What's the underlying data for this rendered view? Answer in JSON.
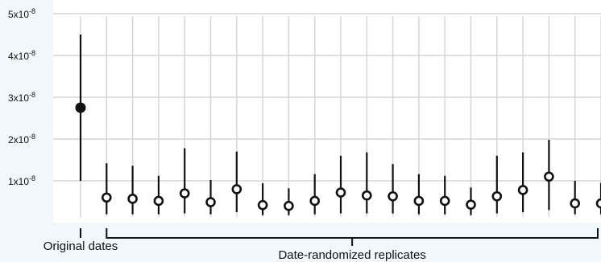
{
  "chart_data": {
    "type": "scatter",
    "title": "",
    "xlabel": "",
    "ylabel": "",
    "ylim": [
      0,
      5e-08
    ],
    "grid": true,
    "y_ticks": [
      {
        "value": 1e-08,
        "mantissa": "1x10",
        "exp": "-8"
      },
      {
        "value": 2e-08,
        "mantissa": "2x10",
        "exp": "-8"
      },
      {
        "value": 3e-08,
        "mantissa": "3x10",
        "exp": "-8"
      },
      {
        "value": 4e-08,
        "mantissa": "4x10",
        "exp": "-8"
      },
      {
        "value": 5e-08,
        "mantissa": "5x10",
        "exp": "-8"
      }
    ],
    "groups": [
      {
        "label": "Original dates",
        "first_index": 0,
        "last_index": 0
      },
      {
        "label": "Date-randomized replicates",
        "first_index": 1,
        "last_index": 20
      }
    ],
    "x": [
      1,
      2,
      3,
      4,
      5,
      6,
      7,
      8,
      9,
      10,
      11,
      12,
      13,
      14,
      15,
      16,
      17,
      18,
      19,
      20,
      21
    ],
    "series": [
      {
        "marker": "filled",
        "points": [
          {
            "x": 1,
            "y": 2.75e-08,
            "low": 1e-08,
            "high": 4.5e-08
          }
        ]
      },
      {
        "marker": "open",
        "points": [
          {
            "x": 2,
            "y": 6e-09,
            "low": 2e-09,
            "high": 1.42e-08
          },
          {
            "x": 3,
            "y": 5.7e-09,
            "low": 2e-09,
            "high": 1.36e-08
          },
          {
            "x": 4,
            "y": 5.2e-09,
            "low": 2e-09,
            "high": 1.12e-08
          },
          {
            "x": 5,
            "y": 7e-09,
            "low": 2.2e-09,
            "high": 1.78e-08
          },
          {
            "x": 6,
            "y": 4.9e-09,
            "low": 2e-09,
            "high": 1.02e-08
          },
          {
            "x": 7,
            "y": 8e-09,
            "low": 2.5e-09,
            "high": 1.7e-08
          },
          {
            "x": 8,
            "y": 4.2e-09,
            "low": 1.8e-09,
            "high": 9.4e-09
          },
          {
            "x": 9,
            "y": 4e-09,
            "low": 1.8e-09,
            "high": 8.2e-09
          },
          {
            "x": 10,
            "y": 5.2e-09,
            "low": 2e-09,
            "high": 1.16e-08
          },
          {
            "x": 11,
            "y": 7.2e-09,
            "low": 2.2e-09,
            "high": 1.6e-08
          },
          {
            "x": 12,
            "y": 6.5e-09,
            "low": 2.2e-09,
            "high": 1.68e-08
          },
          {
            "x": 13,
            "y": 6.3e-09,
            "low": 2.2e-09,
            "high": 1.4e-08
          },
          {
            "x": 14,
            "y": 5.2e-09,
            "low": 2e-09,
            "high": 1.16e-08
          },
          {
            "x": 15,
            "y": 5.2e-09,
            "low": 2e-09,
            "high": 1.12e-08
          },
          {
            "x": 16,
            "y": 4.3e-09,
            "low": 1.8e-09,
            "high": 8.4e-09
          },
          {
            "x": 17,
            "y": 6.3e-09,
            "low": 2.2e-09,
            "high": 1.6e-08
          },
          {
            "x": 18,
            "y": 7.8e-09,
            "low": 2.5e-09,
            "high": 1.68e-08
          },
          {
            "x": 19,
            "y": 1.1e-08,
            "low": 3e-09,
            "high": 1.98e-08
          },
          {
            "x": 20,
            "y": 4.6e-09,
            "low": 2e-09,
            "high": 1e-08
          },
          {
            "x": 21,
            "y": 4.6e-09,
            "low": 2e-09,
            "high": 9.5e-09
          }
        ]
      }
    ]
  }
}
